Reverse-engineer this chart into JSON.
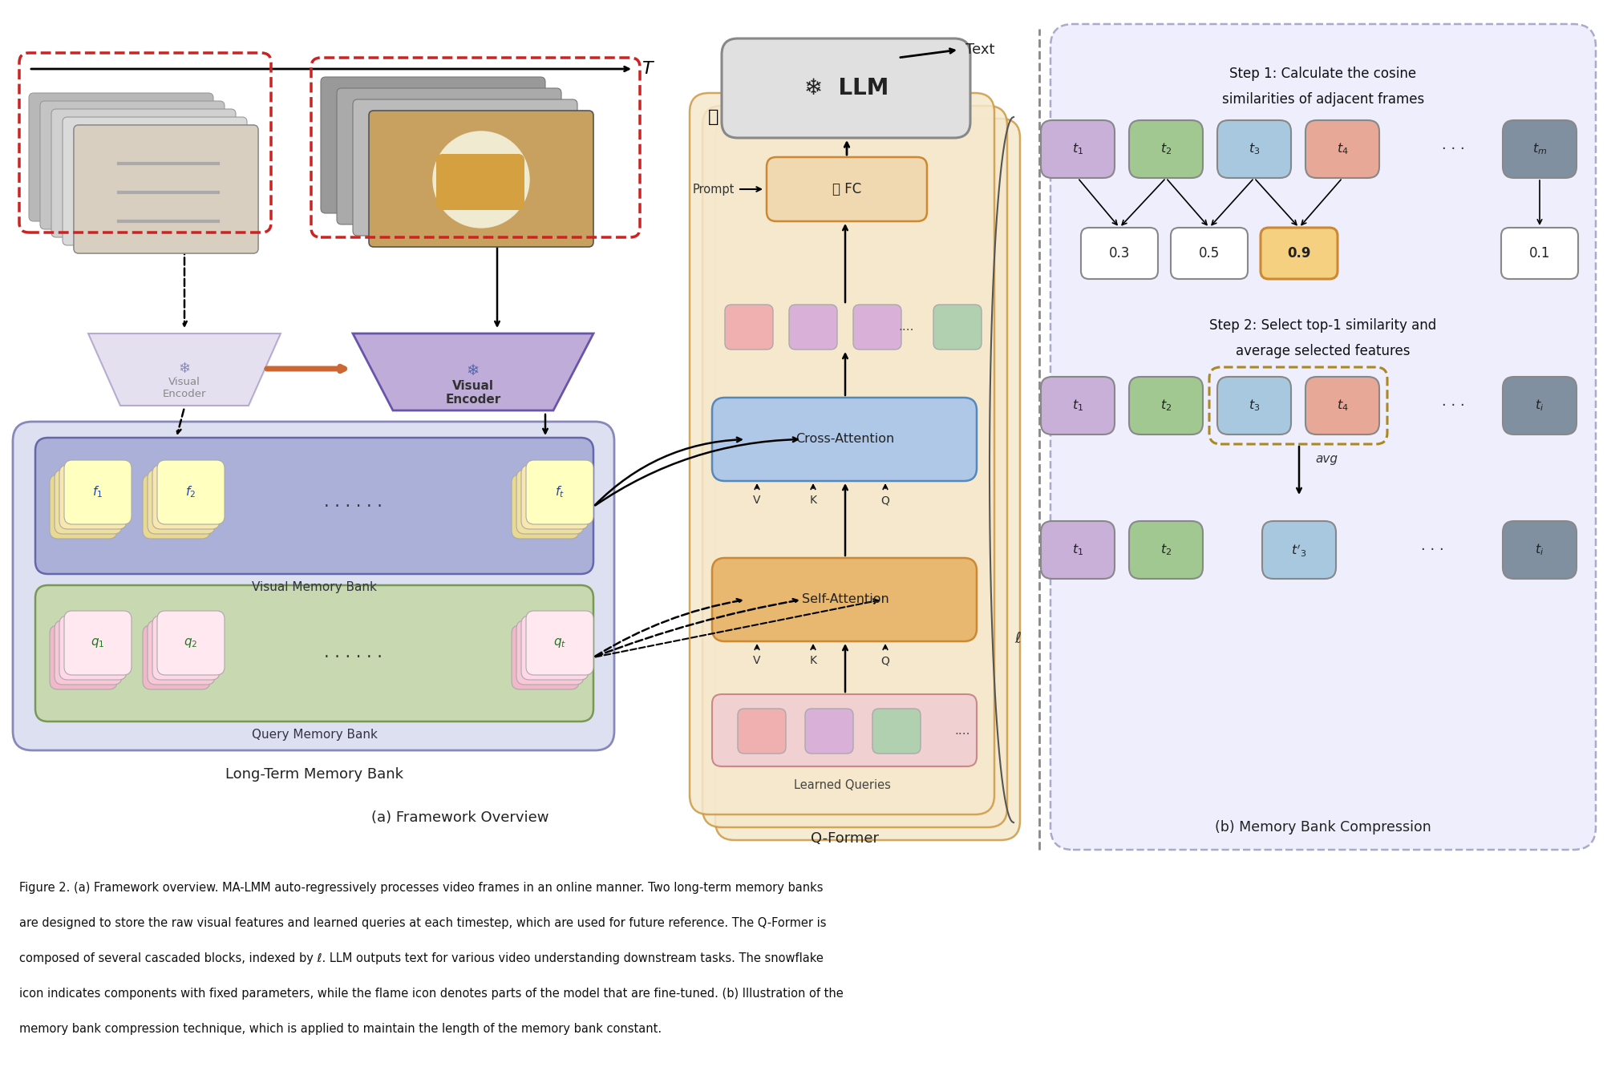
{
  "bg_color": "#ffffff",
  "caption_lines": [
    "Figure 2. (a) Framework overview. MA-LMM auto-regressively processes video frames in an online manner. Two long-term memory banks",
    "are designed to store the raw visual features and learned queries at each timestep, which are used for future reference. The Q-Former is",
    "composed of several cascaded blocks, indexed by ℓ. LLM outputs text for various video understanding downstream tasks. The snowflake",
    "icon indicates components with fixed parameters, while the flame icon denotes parts of the model that are fine-tuned. (b) Illustration of the",
    "memory bank compression technique, which is applied to maintain the length of the memory bank constant."
  ],
  "panel_a_label": "(a) Framework Overview",
  "panel_b_label": "(b) Memory Bank Compression",
  "long_term_label": "Long-Term Memory Bank",
  "qformer_label": "Q-Former",
  "step1_text_line1": "Step 1: Calculate the cosine",
  "step1_text_line2": "similarities of adjacent frames",
  "step2_text_line1": "Step 2: Select top-1 similarity and",
  "step2_text_line2": "average selected features",
  "step1_t_labels": [
    "$t_1$",
    "$t_2$",
    "$t_3$",
    "$t_4$",
    "$t_m$"
  ],
  "step1_t_colors": [
    "#c8b0d8",
    "#a0c890",
    "#a8c8e0",
    "#e8a898",
    "#8090a0"
  ],
  "step1_scores": [
    "0.3",
    "0.5",
    "0.9",
    "0.1"
  ],
  "step2_top_labels": [
    "$t_1$",
    "$t_2$",
    "$t_3$",
    "$t_4$",
    "$t_i$"
  ],
  "step2_top_colors": [
    "#c8b0d8",
    "#a0c890",
    "#a8c8e0",
    "#e8a898",
    "#8090a0"
  ],
  "step2_bot_labels": [
    "$t_1$",
    "$t_2$",
    "$t'_3$",
    "$t_i$"
  ],
  "step2_bot_colors": [
    "#c8b0d8",
    "#a0c890",
    "#a8c8e0",
    "#8090a0"
  ],
  "llm_color": "#e0e0e0",
  "fc_color": "#f0d8b0",
  "cross_attn_color": "#b0c8e8",
  "self_attn_color": "#e8b870",
  "qformer_bg": "#f5e8cc",
  "qformer_edge": "#cc9944",
  "lt_bank_bg": "#dde0f0",
  "lt_bank_edge": "#8888bb",
  "vmb_bg": "#aab0d8",
  "vmb_edge": "#6666aa",
  "qmb_bg": "#c8d8b0",
  "qmb_edge": "#779955",
  "dashed_sep_color": "#888888"
}
